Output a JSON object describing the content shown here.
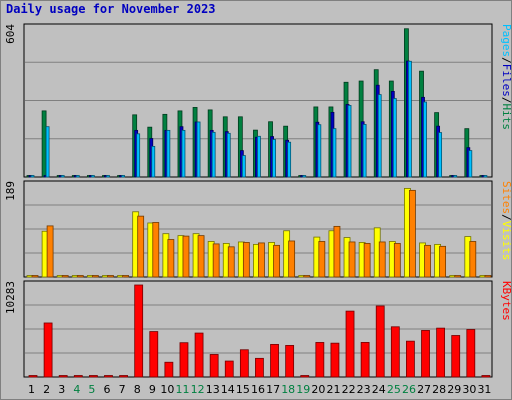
{
  "chart_data": {
    "type": "bar",
    "title": "Daily usage for November 2023",
    "categories": [
      "1",
      "2",
      "3",
      "4",
      "5",
      "6",
      "7",
      "8",
      "9",
      "10",
      "11",
      "12",
      "13",
      "14",
      "15",
      "16",
      "17",
      "18",
      "19",
      "20",
      "21",
      "22",
      "23",
      "24",
      "25",
      "26",
      "27",
      "28",
      "29",
      "30",
      "31"
    ],
    "weekend_days": [
      "4",
      "5",
      "11",
      "12",
      "18",
      "19",
      "25",
      "26"
    ],
    "panels": [
      {
        "id": "hits",
        "max_label": "604",
        "ylim": [
          0,
          604
        ],
        "legend": [
          "Pages",
          "/",
          "Files",
          "/",
          "Hits"
        ],
        "legend_colors": [
          "#00c0ff",
          "#000000",
          "#0000c0",
          "#000000",
          "#008040"
        ],
        "series": [
          {
            "name": "Hits",
            "color": "#008040",
            "values": [
              0,
              268,
              0,
              0,
              0,
              0,
              0,
              252,
              202,
              254,
              268,
              282,
              272,
              244,
              244,
              190,
              224,
              206,
              0,
              284,
              284,
              384,
              389,
              435,
              389,
              601,
              429,
              261,
              0,
              196,
              0
            ]
          },
          {
            "name": "Files",
            "color": "#0000c0",
            "values": [
              0,
              0,
              0,
              0,
              0,
              0,
              0,
              189,
              156,
              189,
              204,
              223,
              189,
              184,
              107,
              161,
              164,
              149,
              0,
              222,
              262,
              294,
              224,
              372,
              347,
              470,
              323,
              206,
              0,
              119,
              0
            ]
          },
          {
            "name": "Pages",
            "color": "#00c0ff",
            "values": [
              0,
              204,
              0,
              0,
              0,
              0,
              0,
              175,
              124,
              189,
              189,
              223,
              181,
              177,
              87,
              165,
              152,
              141,
              0,
              212,
              196,
              290,
              213,
              334,
              318,
              469,
              304,
              180,
              0,
              107,
              0
            ]
          }
        ]
      },
      {
        "id": "visits",
        "max_label": "189",
        "ylim": [
          0,
          189
        ],
        "legend": [
          "Sites",
          "/",
          "Visits"
        ],
        "legend_colors": [
          "#ff8000",
          "#000000",
          "#ffff00"
        ],
        "series": [
          {
            "name": "Visits",
            "color": "#ffff00",
            "values": [
              0,
              94,
              0,
              0,
              0,
              0,
              0,
              134,
              111,
              89,
              85,
              89,
              73,
              69,
              72,
              67,
              71,
              95,
              0,
              82,
              95,
              81,
              71,
              101,
              73,
              182,
              70,
              67,
              0,
              83,
              0
            ]
          },
          {
            "name": "Sites",
            "color": "#ff8000",
            "values": [
              2,
              105,
              0,
              0,
              0,
              0,
              0,
              125,
              112,
              77,
              84,
              85,
              68,
              62,
              71,
              70,
              65,
              74,
              0,
              73,
              104,
              72,
              69,
              72,
              69,
              178,
              65,
              63,
              0,
              73,
              0
            ]
          }
        ]
      },
      {
        "id": "kbytes",
        "max_label": "10283",
        "ylim": [
          0,
          10283
        ],
        "legend": [
          "KBytes"
        ],
        "legend_colors": [
          "#ff0000"
        ],
        "series": [
          {
            "name": "KBytes",
            "color": "#ff0000",
            "values": [
              0,
              6038,
              0,
              0,
              0,
              0,
              0,
              10283,
              5079,
              1650,
              3834,
              4911,
              2520,
              1782,
              3046,
              2086,
              3644,
              3529,
              0,
              3862,
              3782,
              7364,
              3866,
              7940,
              5612,
              4006,
              5203,
              5462,
              4640,
              5308,
              0
            ]
          }
        ]
      }
    ]
  }
}
